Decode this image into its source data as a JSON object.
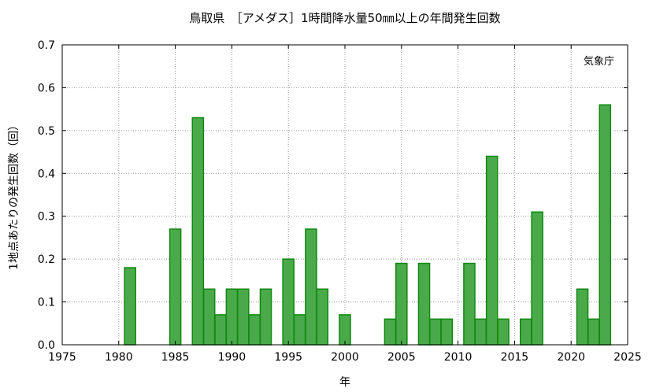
{
  "chart_data": {
    "type": "bar",
    "title": "鳥取県　［アメダス］1時間降水量50㎜以上の年間発生回数",
    "xlabel": "年",
    "ylabel": "1地点あたりの発生回数（回）",
    "annotation": "気象庁",
    "xlim": [
      1975,
      2025
    ],
    "ylim": [
      0,
      0.7
    ],
    "xticks": [
      "1975",
      "1980",
      "1985",
      "1990",
      "1995",
      "2000",
      "2005",
      "2010",
      "2015",
      "2020",
      "2025"
    ],
    "yticks": [
      "0.0",
      "0.1",
      "0.2",
      "0.3",
      "0.4",
      "0.5",
      "0.6",
      "0.7"
    ],
    "grid": true,
    "colors": {
      "bar_fill": "#4aaa4a",
      "bar_edge": "#118811"
    },
    "points": [
      {
        "x": 1981,
        "y": 0.18
      },
      {
        "x": 1985,
        "y": 0.27
      },
      {
        "x": 1987,
        "y": 0.53
      },
      {
        "x": 1988,
        "y": 0.13
      },
      {
        "x": 1989,
        "y": 0.07
      },
      {
        "x": 1990,
        "y": 0.13
      },
      {
        "x": 1991,
        "y": 0.13
      },
      {
        "x": 1992,
        "y": 0.07
      },
      {
        "x": 1993,
        "y": 0.13
      },
      {
        "x": 1995,
        "y": 0.2
      },
      {
        "x": 1996,
        "y": 0.07
      },
      {
        "x": 1997,
        "y": 0.27
      },
      {
        "x": 1998,
        "y": 0.13
      },
      {
        "x": 2000,
        "y": 0.07
      },
      {
        "x": 2004,
        "y": 0.06
      },
      {
        "x": 2005,
        "y": 0.19
      },
      {
        "x": 2007,
        "y": 0.19
      },
      {
        "x": 2008,
        "y": 0.06
      },
      {
        "x": 2009,
        "y": 0.06
      },
      {
        "x": 2011,
        "y": 0.19
      },
      {
        "x": 2012,
        "y": 0.06
      },
      {
        "x": 2013,
        "y": 0.44
      },
      {
        "x": 2014,
        "y": 0.06
      },
      {
        "x": 2016,
        "y": 0.06
      },
      {
        "x": 2017,
        "y": 0.31
      },
      {
        "x": 2021,
        "y": 0.13
      },
      {
        "x": 2022,
        "y": 0.06
      },
      {
        "x": 2023,
        "y": 0.56
      }
    ]
  }
}
